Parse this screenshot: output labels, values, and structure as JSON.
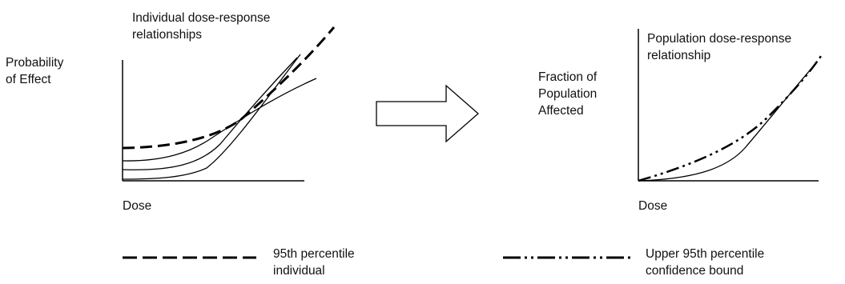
{
  "left_panel": {
    "title": "Individual dose-response\nrelationships",
    "y_label": "Probability\nof Effect",
    "x_label": "Dose"
  },
  "right_panel": {
    "title": "Population dose-response\nrelationship",
    "y_label": "Fraction of\nPopulation\nAffected",
    "x_label": "Dose"
  },
  "legend": {
    "dashed": "95th percentile\nindividual",
    "dashdot": "Upper 95th percentile\nconfidence bound"
  }
}
